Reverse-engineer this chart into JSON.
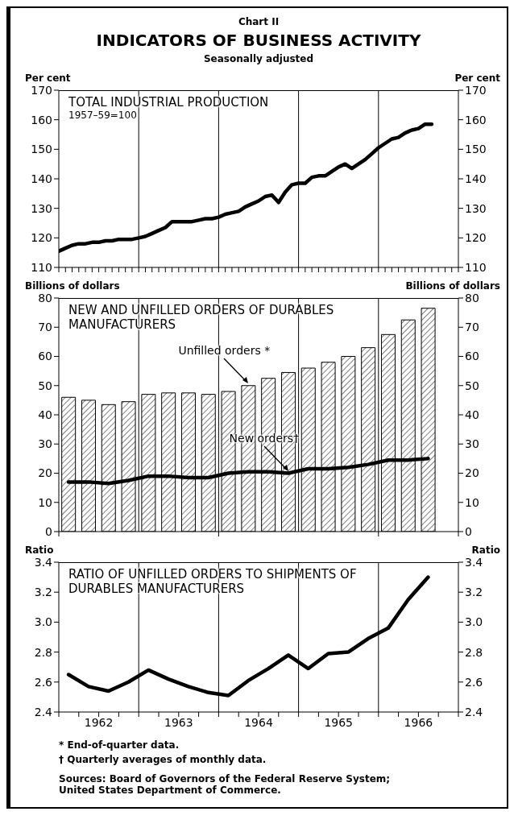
{
  "chart_data": [
    {
      "type": "line",
      "title": "TOTAL INDUSTRIAL PRODUCTION",
      "subtitle": "1957–59=100",
      "ylabel": "Per cent",
      "y2label": "Per cent",
      "annotations": [
        "Chart II",
        "INDICATORS OF BUSINESS ACTIVITY",
        "Seasonally adjusted"
      ],
      "x": [
        "1962-01",
        "1962-02",
        "1962-03",
        "1962-04",
        "1962-05",
        "1962-06",
        "1962-07",
        "1962-08",
        "1962-09",
        "1962-10",
        "1962-11",
        "1962-12",
        "1963-01",
        "1963-02",
        "1963-03",
        "1963-04",
        "1963-05",
        "1963-06",
        "1963-07",
        "1963-08",
        "1963-09",
        "1963-10",
        "1963-11",
        "1963-12",
        "1964-01",
        "1964-02",
        "1964-03",
        "1964-04",
        "1964-05",
        "1964-06",
        "1964-07",
        "1964-08",
        "1964-09",
        "1964-10",
        "1964-11",
        "1964-12",
        "1965-01",
        "1965-02",
        "1965-03",
        "1965-04",
        "1965-05",
        "1965-06",
        "1965-07",
        "1965-08",
        "1965-09",
        "1965-10",
        "1965-11",
        "1965-12",
        "1966-01",
        "1966-02",
        "1966-03",
        "1966-04",
        "1966-05",
        "1966-06",
        "1966-07",
        "1966-08",
        "1966-09"
      ],
      "series": [
        {
          "color": "#000000",
          "values": [
            115.5,
            116.5,
            117.5,
            118,
            118,
            118.5,
            118.5,
            119,
            119,
            119.5,
            119.5,
            119.5,
            120,
            120.5,
            121.5,
            122.5,
            123.5,
            125.5,
            125.5,
            125.5,
            125.5,
            126,
            126.5,
            126.5,
            127,
            128,
            128.5,
            129,
            130.5,
            131.5,
            132.5,
            134,
            134.5,
            132,
            135.5,
            138,
            138.5,
            138.5,
            140.5,
            141,
            141,
            142.5,
            144,
            145,
            143.5,
            145,
            146.5,
            148.5,
            150.5,
            152,
            153.5,
            154,
            155.5,
            156.5,
            157,
            158.5,
            158.5
          ]
        }
      ],
      "xlim": [
        "1962-01",
        "1967-01"
      ],
      "xticks": [
        {
          "value": "1962-01",
          "label": null
        },
        {
          "value": "1962-02",
          "label": null
        },
        {
          "value": "1962-03",
          "label": null
        },
        {
          "value": "1962-04",
          "label": null
        },
        {
          "value": "1962-05",
          "label": null
        },
        {
          "value": "1962-06",
          "label": null
        },
        {
          "value": "1962-07",
          "label": null
        },
        {
          "value": "1962-08",
          "label": null
        },
        {
          "value": "1962-09",
          "label": null
        },
        {
          "value": "1962-10",
          "label": null
        },
        {
          "value": "1962-11",
          "label": null
        },
        {
          "value": "1962-12",
          "label": null
        },
        {
          "value": "1963-01",
          "label": null
        },
        {
          "value": "1963-02",
          "label": null
        },
        {
          "value": "1963-03",
          "label": null
        },
        {
          "value": "1963-04",
          "label": null
        },
        {
          "value": "1963-05",
          "label": null
        },
        {
          "value": "1963-06",
          "label": null
        },
        {
          "value": "1963-07",
          "label": null
        },
        {
          "value": "1963-08",
          "label": null
        },
        {
          "value": "1963-09",
          "label": null
        },
        {
          "value": "1963-10",
          "label": null
        },
        {
          "value": "1963-11",
          "label": null
        },
        {
          "value": "1963-12",
          "label": null
        },
        {
          "value": "1964-01",
          "label": null
        },
        {
          "value": "1964-02",
          "label": null
        },
        {
          "value": "1964-03",
          "label": null
        },
        {
          "value": "1964-04",
          "label": null
        },
        {
          "value": "1964-05",
          "label": null
        },
        {
          "value": "1964-06",
          "label": null
        },
        {
          "value": "1964-07",
          "label": null
        },
        {
          "value": "1964-08",
          "label": null
        },
        {
          "value": "1964-09",
          "label": null
        },
        {
          "value": "1964-10",
          "label": null
        },
        {
          "value": "1964-11",
          "label": null
        },
        {
          "value": "1964-12",
          "label": null
        },
        {
          "value": "1965-01",
          "label": null
        },
        {
          "value": "1965-02",
          "label": null
        },
        {
          "value": "1965-03",
          "label": null
        },
        {
          "value": "1965-04",
          "label": null
        },
        {
          "value": "1965-05",
          "label": null
        },
        {
          "value": "1965-06",
          "label": null
        },
        {
          "value": "1965-07",
          "label": null
        },
        {
          "value": "1965-08",
          "label": null
        },
        {
          "value": "1965-09",
          "label": null
        },
        {
          "value": "1965-10",
          "label": null
        },
        {
          "value": "1965-11",
          "label": null
        },
        {
          "value": "1965-12",
          "label": null
        },
        {
          "value": "1966-01",
          "label": null
        },
        {
          "value": "1966-02",
          "label": null
        },
        {
          "value": "1966-03",
          "label": null
        },
        {
          "value": "1966-04",
          "label": null
        },
        {
          "value": "1966-05",
          "label": null
        },
        {
          "value": "1966-06",
          "label": null
        },
        {
          "value": "1966-07",
          "label": null
        },
        {
          "value": "1966-08",
          "label": null
        },
        {
          "value": "1966-09",
          "label": null
        },
        {
          "value": "1966-10",
          "label": null
        },
        {
          "value": "1966-11",
          "label": null
        },
        {
          "value": "1966-12",
          "label": null
        },
        {
          "value": "1967-01",
          "label": null
        }
      ],
      "ylim": [
        110,
        170
      ],
      "yticks": [
        110,
        120,
        130,
        140,
        150,
        160,
        170
      ],
      "y2lim": [
        110,
        170
      ],
      "y2ticks": [
        110,
        120,
        130,
        140,
        150,
        160,
        170
      ],
      "tick_labels": "y",
      "ref_lines": [
        {
          "axis": "x",
          "value": "1963-01",
          "color": "#000000"
        },
        {
          "axis": "x",
          "value": "1964-01",
          "color": "#000000"
        },
        {
          "axis": "x",
          "value": "1965-01",
          "color": "#000000"
        },
        {
          "axis": "x",
          "value": "1966-01",
          "color": "#000000"
        }
      ]
    },
    {
      "type": "bar",
      "title": "NEW AND UNFILLED ORDERS OF DURABLES MANUFACTURERS",
      "ylabel": "Billions of dollars",
      "y2label": "Billions of dollars",
      "annotations": [
        {
          "text": "Unfilled orders *",
          "x": "1964-05-15",
          "y": 50
        },
        {
          "text": "New orders†",
          "x": "1964-11-15",
          "y": 20
        }
      ],
      "x": [
        "1962-02-15",
        "1962-05-15",
        "1962-08-15",
        "1962-11-15",
        "1963-02-15",
        "1963-05-15",
        "1963-08-15",
        "1963-11-15",
        "1964-02-15",
        "1964-05-15",
        "1964-08-15",
        "1964-11-15",
        "1965-02-15",
        "1965-05-15",
        "1965-08-15",
        "1965-11-15",
        "1966-02-15",
        "1966-05-15",
        "1966-08-15"
      ],
      "series": [
        {
          "color": "#000000",
          "values": [
            46,
            45,
            43.5,
            44.5,
            47,
            47.5,
            47.5,
            47,
            48,
            50,
            52.5,
            54.5,
            56,
            58,
            60,
            63,
            67.5,
            72.5,
            76.5
          ]
        },
        {
          "type": "line",
          "color": "#000000",
          "values": [
            17,
            17,
            16.5,
            17.5,
            19,
            19,
            18.5,
            18.5,
            20,
            20.5,
            20.5,
            20,
            21.5,
            21.5,
            22,
            23,
            24.5,
            24.5,
            25
          ]
        }
      ],
      "xlim": [
        "1962-01",
        "1967-01"
      ],
      "ylim": [
        0,
        80
      ],
      "yticks": [
        0,
        10,
        20,
        30,
        40,
        50,
        60,
        70,
        80
      ],
      "y2lim": [
        0,
        80
      ],
      "y2ticks": [
        0,
        10,
        20,
        30,
        40,
        50,
        60,
        70,
        80
      ],
      "tick_labels": "y",
      "ref_lines": [
        {
          "axis": "x",
          "value": "1963-01",
          "color": "#000000"
        },
        {
          "axis": "x",
          "value": "1964-01",
          "color": "#000000"
        },
        {
          "axis": "x",
          "value": "1965-01",
          "color": "#000000"
        },
        {
          "axis": "x",
          "value": "1966-01",
          "color": "#000000"
        }
      ]
    },
    {
      "type": "line",
      "title": "RATIO OF UNFILLED ORDERS TO SHIPMENTS OF DURABLES MANUFACTURERS",
      "ylabel": "Ratio",
      "y2label": "Ratio",
      "annotations": [
        "* End-of-quarter data.",
        "† Quarterly averages of monthly data.",
        "Sources: Board of Governors of the Federal Reserve System; United States Department of Commerce."
      ],
      "x": [
        "1962-02-15",
        "1962-05-15",
        "1962-08-15",
        "1962-11-15",
        "1963-02-15",
        "1963-05-15",
        "1963-08-15",
        "1963-11-15",
        "1964-02-15",
        "1964-05-15",
        "1964-08-15",
        "1964-11-15",
        "1965-02-15",
        "1965-05-15",
        "1965-08-15",
        "1965-11-15",
        "1966-02-15",
        "1966-05-15",
        "1966-08-15"
      ],
      "series": [
        {
          "color": "#000000",
          "values": [
            2.65,
            2.57,
            2.54,
            2.6,
            2.68,
            2.62,
            2.57,
            2.53,
            2.51,
            2.61,
            2.69,
            2.78,
            2.69,
            2.79,
            2.8,
            2.89,
            2.96,
            3.15,
            3.3
          ]
        }
      ],
      "xlim": [
        "1962-01",
        "1967-01"
      ],
      "xticks": [
        {
          "value": "1962-01",
          "label": null
        },
        {
          "value": "1962-04",
          "label": null
        },
        {
          "value": "1962-07",
          "label": "1962"
        },
        {
          "value": "1962-10",
          "label": null
        },
        {
          "value": "1963-01",
          "label": null
        },
        {
          "value": "1963-04",
          "label": null
        },
        {
          "value": "1963-07",
          "label": "1963"
        },
        {
          "value": "1963-10",
          "label": null
        },
        {
          "value": "1964-01",
          "label": null
        },
        {
          "value": "1964-04",
          "label": null
        },
        {
          "value": "1964-07",
          "label": "1964"
        },
        {
          "value": "1964-10",
          "label": null
        },
        {
          "value": "1965-01",
          "label": null
        },
        {
          "value": "1965-04",
          "label": null
        },
        {
          "value": "1965-07",
          "label": "1965"
        },
        {
          "value": "1965-10",
          "label": null
        },
        {
          "value": "1966-01",
          "label": null
        },
        {
          "value": "1966-04",
          "label": null
        },
        {
          "value": "1966-07",
          "label": "1966"
        },
        {
          "value": "1966-10",
          "label": null
        },
        {
          "value": "1967-01",
          "label": null
        }
      ],
      "ylim": [
        2.4,
        3.4
      ],
      "yticks": [
        2.4,
        2.6,
        2.8,
        {
          "value": 3,
          "label": "3.0"
        },
        3.2,
        3.4
      ],
      "y2lim": [
        2.4,
        3.4
      ],
      "y2ticks": [
        2.4,
        2.6,
        2.8,
        {
          "value": 3,
          "label": "3.0"
        },
        3.2,
        3.4
      ],
      "ref_lines": [
        {
          "axis": "x",
          "value": "1963-01",
          "color": "#000000"
        },
        {
          "axis": "x",
          "value": "1964-01",
          "color": "#000000"
        },
        {
          "axis": "x",
          "value": "1965-01",
          "color": "#000000"
        },
        {
          "axis": "x",
          "value": "1966-01",
          "color": "#000000"
        }
      ]
    }
  ]
}
